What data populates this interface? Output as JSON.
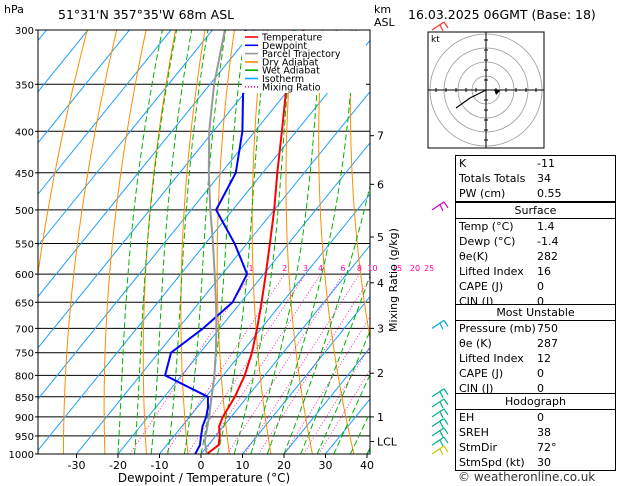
{
  "header": {
    "location": "51°31'N  357°35'W  68m  ASL",
    "run": "16.03.2025  06GMT  (Base: 18)",
    "hpa_unit": "hPa",
    "km_unit": "km",
    "asl": "ASL"
  },
  "legend": [
    {
      "label": "Temperature",
      "color": "#ff0000",
      "style": "solid"
    },
    {
      "label": "Dewpoint",
      "color": "#0000ff",
      "style": "solid"
    },
    {
      "label": "Parcel Trajectory",
      "color": "#999999",
      "style": "solid"
    },
    {
      "label": "Dry Adiabat",
      "color": "#ff8c00",
      "style": "solid"
    },
    {
      "label": "Wet Adiabat",
      "color": "#00b000",
      "style": "solid"
    },
    {
      "label": "Isotherm",
      "color": "#00aaff",
      "style": "solid"
    },
    {
      "label": "Mixing Ratio",
      "color": "#ff00aa",
      "style": "dotted"
    }
  ],
  "chart_data": {
    "type": "line",
    "xlabel": "Dewpoint / Temperature (°C)",
    "ylabel": "Mixing Ratio (g/kg)",
    "x_ticks": [
      -30,
      -20,
      -10,
      0,
      10,
      20,
      30,
      40
    ],
    "pressure_ticks": [
      300,
      350,
      400,
      450,
      500,
      550,
      600,
      650,
      700,
      750,
      800,
      850,
      900,
      950,
      1000
    ],
    "km_ticks": [
      {
        "label": "7",
        "p": 405
      },
      {
        "label": "6",
        "p": 465
      },
      {
        "label": "5",
        "p": 540
      },
      {
        "label": "4",
        "p": 615
      },
      {
        "label": "3",
        "p": 700
      },
      {
        "label": "2",
        "p": 795
      },
      {
        "label": "1",
        "p": 900
      },
      {
        "label": "LCL",
        "p": 965
      }
    ],
    "mixing_ratio_labels": [
      "1",
      "2",
      "3",
      "4",
      "6",
      "8",
      "10",
      "15",
      "20",
      "25"
    ],
    "series": [
      {
        "name": "Temperature",
        "p": [
          1000,
          975,
          950,
          925,
          900,
          850,
          800,
          750,
          700,
          650,
          600,
          550,
          500,
          450,
          400,
          350,
          300
        ],
        "t": [
          1.4,
          2.5,
          1.0,
          -1.0,
          -2.0,
          -3.0,
          -4.8,
          -7.5,
          -11.0,
          -15.0,
          -19.5,
          -24.5,
          -30.0,
          -36.5,
          -43.5,
          -51.5,
          -58.0
        ]
      },
      {
        "name": "Dewpoint",
        "p": [
          1000,
          975,
          950,
          925,
          900,
          875,
          850,
          800,
          750,
          700,
          650,
          600,
          550,
          500,
          450,
          400,
          350,
          300
        ],
        "t": [
          -1.4,
          -2.0,
          -3.5,
          -5.0,
          -6.0,
          -7.5,
          -9.5,
          -24.0,
          -27.0,
          -24.0,
          -22.0,
          -24.0,
          -33.0,
          -44.0,
          -46.5,
          -53.0,
          -62.0,
          -72.0
        ]
      },
      {
        "name": "Parcel Trajectory",
        "p": [
          1000,
          965,
          950,
          900,
          850,
          800,
          750,
          700,
          650,
          600,
          550,
          500,
          450,
          400,
          350,
          300
        ],
        "t": [
          1.4,
          -1.5,
          -2.4,
          -5.3,
          -8.6,
          -12.1,
          -16.2,
          -20.8,
          -26.0,
          -31.8,
          -38.2,
          -45.4,
          -53.0,
          -61.0,
          -69.0,
          -77.0
        ]
      }
    ],
    "xlim": [
      -35,
      40
    ],
    "plim": [
      300,
      1000
    ]
  },
  "hodograph": {
    "unit": "kt"
  },
  "indices": [
    {
      "k": "K",
      "v": "-11"
    },
    {
      "k": "Totals Totals",
      "v": "34"
    },
    {
      "k": "PW (cm)",
      "v": "0.55"
    }
  ],
  "surface": {
    "title": "Surface",
    "rows": [
      {
        "k": "Temp (°C)",
        "v": "1.4"
      },
      {
        "k": "Dewp (°C)",
        "v": "-1.4"
      },
      {
        "k": "θe(K)",
        "v": "282"
      },
      {
        "k": "Lifted Index",
        "v": "16"
      },
      {
        "k": "CAPE (J)",
        "v": "0"
      },
      {
        "k": "CIN (J)",
        "v": "0"
      }
    ]
  },
  "most_unstable": {
    "title": "Most Unstable",
    "rows": [
      {
        "k": "Pressure (mb)",
        "v": "750"
      },
      {
        "k": "θe (K)",
        "v": "287"
      },
      {
        "k": "Lifted Index",
        "v": "12"
      },
      {
        "k": "CAPE (J)",
        "v": "0"
      },
      {
        "k": "CIN (J)",
        "v": "0"
      }
    ]
  },
  "hodograph_table": {
    "title": "Hodograph",
    "rows": [
      {
        "k": "EH",
        "v": "0"
      },
      {
        "k": "SREH",
        "v": "38"
      },
      {
        "k": "StmDir",
        "v": "72°"
      },
      {
        "k": "StmSpd (kt)",
        "v": "30"
      }
    ]
  },
  "footer": "© weatheronline.co.uk"
}
